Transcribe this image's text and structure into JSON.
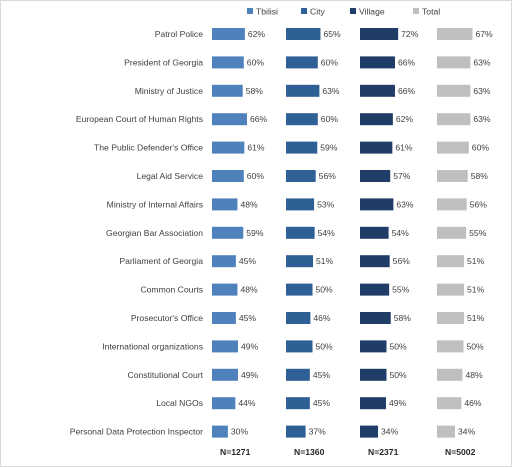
{
  "chart_data": {
    "type": "bar",
    "orientation": "horizontal",
    "layout": "small-multiples-by-series",
    "grid": false,
    "legend_position": "top",
    "categories": [
      "Patrol Police",
      "President of Georgia",
      "Ministry of Justice",
      "European Court of Human Rights",
      "The Public Defender's Office",
      "Legal Aid Service",
      "Ministry of Internal Affairs",
      "Georgian Bar Association",
      "Parliament of Georgia",
      "Common Courts",
      "Prosecutor's Office",
      "International organizations",
      "Constitutional Court",
      "Local NGOs",
      "Personal Data Protection Inspector"
    ],
    "series": [
      {
        "name": "Tbilisi",
        "color": "#4f81bd",
        "n_label": "N=1271",
        "values": [
          62,
          60,
          58,
          66,
          61,
          60,
          48,
          59,
          45,
          48,
          45,
          49,
          49,
          44,
          30
        ]
      },
      {
        "name": "City",
        "color": "#2e5f95",
        "n_label": "N=1360",
        "values": [
          65,
          60,
          63,
          60,
          59,
          56,
          53,
          54,
          51,
          50,
          46,
          50,
          45,
          45,
          37
        ]
      },
      {
        "name": "Village",
        "color": "#1f3d66",
        "n_label": "N=2371",
        "values": [
          72,
          66,
          66,
          62,
          61,
          57,
          63,
          54,
          56,
          55,
          58,
          50,
          50,
          49,
          34
        ]
      },
      {
        "name": "Total",
        "color": "#bfbfbf",
        "n_label": "N=5002",
        "values": [
          67,
          63,
          63,
          63,
          60,
          58,
          56,
          55,
          51,
          51,
          51,
          50,
          48,
          46,
          34
        ]
      }
    ],
    "value_suffix": "%"
  }
}
